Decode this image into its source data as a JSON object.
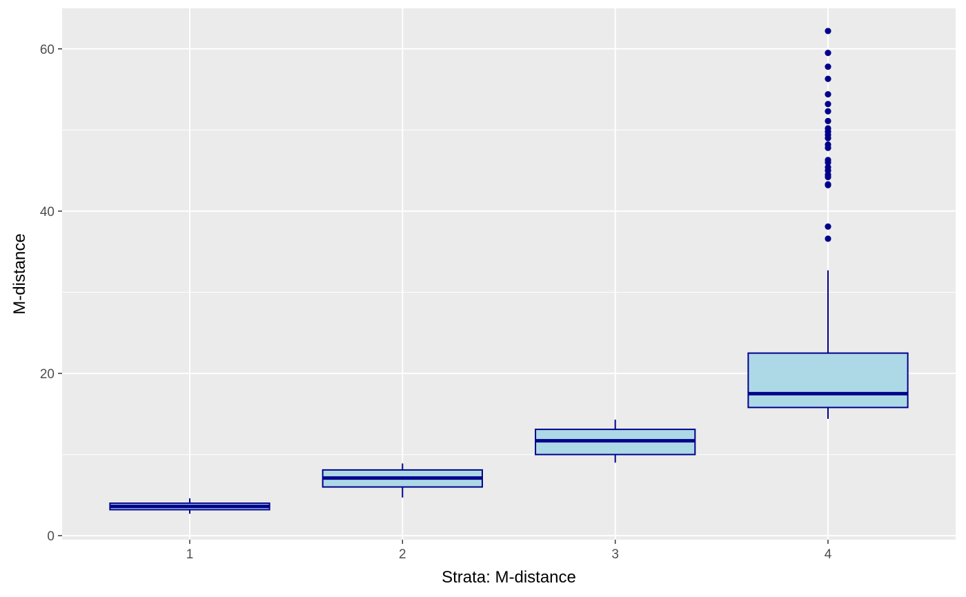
{
  "chart_data": {
    "type": "boxplot",
    "title": "",
    "xlabel": "Strata: M-distance",
    "ylabel": "M-distance",
    "categories": [
      "1",
      "2",
      "3",
      "4"
    ],
    "ylim": [
      -0.5,
      65
    ],
    "y_ticks": [
      0,
      20,
      40,
      60
    ],
    "y_tick_labels": [
      "0",
      "20",
      "40",
      "60"
    ],
    "grid": true,
    "legend": "none",
    "boxes": [
      {
        "category": "1",
        "whisker_low": 2.7,
        "q1": 3.2,
        "median": 3.6,
        "q3": 4.0,
        "whisker_high": 4.6,
        "outliers": []
      },
      {
        "category": "2",
        "whisker_low": 4.7,
        "q1": 6.0,
        "median": 7.1,
        "q3": 8.1,
        "whisker_high": 8.9,
        "outliers": []
      },
      {
        "category": "3",
        "whisker_low": 9.0,
        "q1": 10.0,
        "median": 11.7,
        "q3": 13.1,
        "whisker_high": 14.3,
        "outliers": []
      },
      {
        "category": "4",
        "whisker_low": 14.4,
        "q1": 15.8,
        "median": 17.5,
        "q3": 22.5,
        "whisker_high": 32.7,
        "outliers": [
          36.6,
          38.1,
          43.2,
          43.3,
          44.2,
          44.5,
          45.0,
          45.4,
          46.0,
          46.3,
          47.8,
          48.2,
          49.0,
          49.4,
          49.8,
          50.2,
          51.1,
          52.3,
          53.2,
          54.4,
          56.3,
          57.8,
          59.5,
          62.2
        ]
      }
    ],
    "colors": {
      "panel_background": "#EBEBEB",
      "grid_major": "#FFFFFF",
      "box_fill": "#ADD8E6",
      "box_line": "#00008B",
      "outlier": "#00008B",
      "tick_label": "#4D4D4D",
      "axis_title": "#000000"
    }
  }
}
